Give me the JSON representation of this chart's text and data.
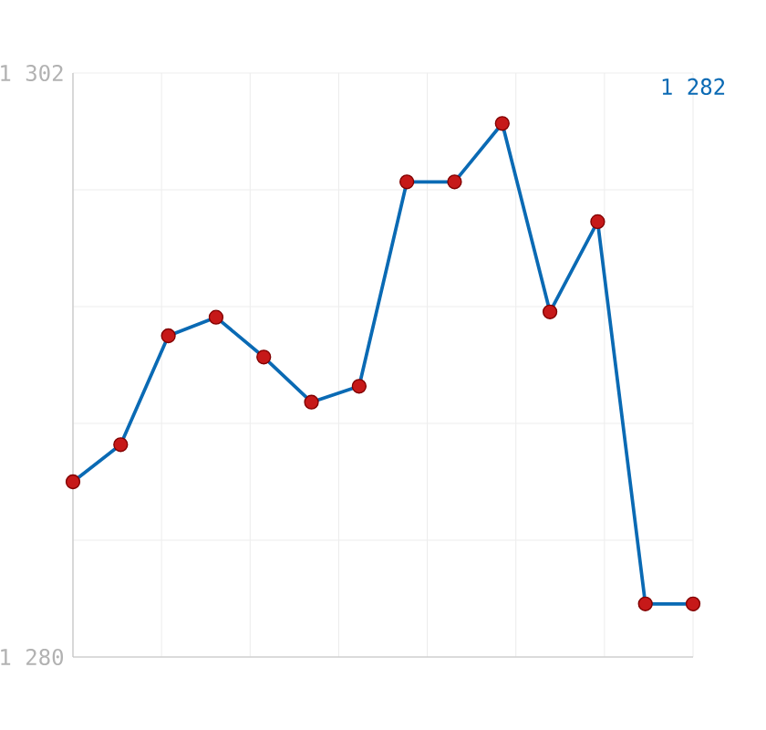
{
  "chart_data": {
    "type": "line",
    "categories": [
      null,
      null,
      null,
      null,
      null,
      null,
      null,
      null,
      null,
      null,
      null,
      null,
      null,
      null
    ],
    "series": [
      {
        "color": "#0a6ab4",
        "values": [
          1286.6,
          1288.0,
          1292.1,
          1292.8,
          1291.3,
          1289.6,
          1290.2,
          1297.9,
          1297.9,
          1300.1,
          1293.0,
          1296.4,
          1282,
          1282
        ]
      }
    ],
    "ylim": [
      1280,
      1302
    ],
    "yticks": [
      {
        "value": 1280,
        "label": "1 280"
      },
      {
        "value": 1284.4,
        "label": null
      },
      {
        "value": 1288.8,
        "label": null
      },
      {
        "value": 1293.2,
        "label": null
      },
      {
        "value": 1297.6,
        "label": null
      },
      {
        "value": 1302,
        "label": "1 302"
      }
    ],
    "tick_labels": "y",
    "grid": true,
    "marker": "circle",
    "line_style": "solid",
    "annotations": [
      "1 282"
    ]
  }
}
